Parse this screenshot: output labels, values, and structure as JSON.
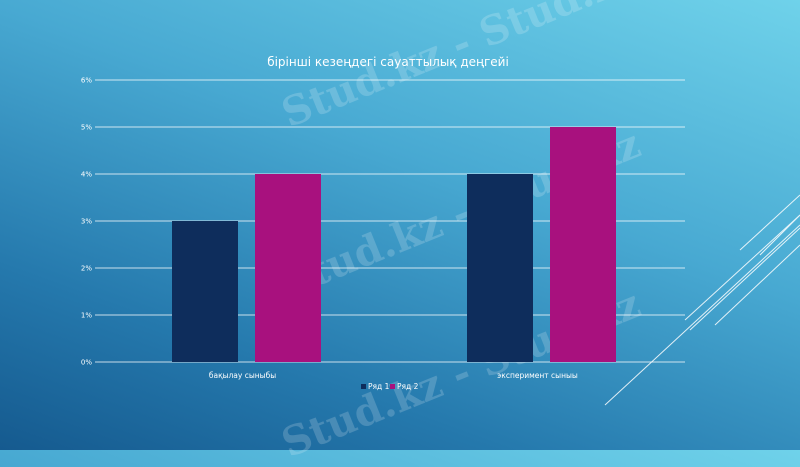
{
  "chart_data": {
    "type": "bar",
    "title": "бірінші кезеңдегі сауаттылық деңгейі",
    "categories": [
      "бақылау сыныбы",
      "эксперимент сыныы"
    ],
    "series": [
      {
        "name": "Ряд 1",
        "values": [
          3,
          4
        ],
        "color": "#0e2d5c"
      },
      {
        "name": "Ряд 2",
        "values": [
          4,
          5
        ],
        "color": "#a8117e"
      }
    ],
    "ylim": [
      0,
      6
    ],
    "yticks": [
      "0%",
      "1%",
      "2%",
      "3%",
      "4%",
      "5%",
      "6%"
    ],
    "grid": true,
    "legend": "bottom"
  },
  "watermark": "Stud.kz - Stud.kz"
}
